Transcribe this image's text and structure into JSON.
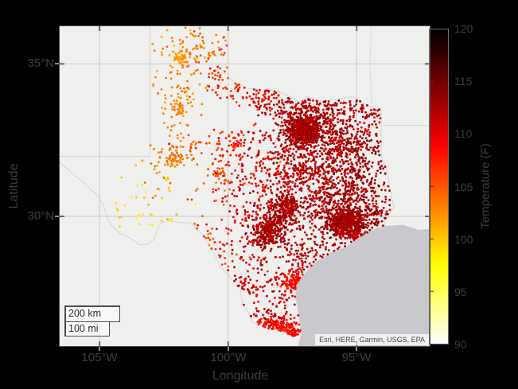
{
  "axes": {
    "xlabel": "Longitude",
    "ylabel": "Latitude",
    "xticks": [
      {
        "label": "105°W",
        "lon": -105
      },
      {
        "label": "100°W",
        "lon": -100
      },
      {
        "label": "95°W",
        "lon": -95
      }
    ],
    "yticks": [
      {
        "label": "35°N",
        "lat": 35
      },
      {
        "label": "30°N",
        "lat": 30
      }
    ]
  },
  "colorbar": {
    "label": "Temperature (F)",
    "min": 90,
    "max": 120,
    "ticks": [
      120,
      115,
      110,
      105,
      100,
      95,
      90
    ],
    "colormap": "hot_reversed_white_to_black"
  },
  "scalebar": {
    "km_label": "200 km",
    "mi_label": "100 mi"
  },
  "attribution": "Esri, HERE, Garmin, USGS, EPA",
  "style_colors": {
    "figure_background": "#000000",
    "label_color": "#3d3d3d",
    "land": "#efefee",
    "water": "#c9c9cd",
    "grid": "#cbcbce",
    "state_border": "#d9d9db",
    "frame": "#4a4a4a"
  },
  "basemap": {
    "texas_outline": [
      [
        -106.55,
        31.81
      ],
      [
        -106.5,
        31.75
      ],
      [
        -106.3,
        31.62
      ],
      [
        -105.99,
        31.39
      ],
      [
        -105.58,
        31.1
      ],
      [
        -105.06,
        30.69
      ],
      [
        -104.85,
        30.39
      ],
      [
        -104.68,
        29.92
      ],
      [
        -104.52,
        29.68
      ],
      [
        -104.16,
        29.4
      ],
      [
        -103.79,
        29.26
      ],
      [
        -103.44,
        29.04
      ],
      [
        -103.1,
        29.06
      ],
      [
        -102.87,
        29.24
      ],
      [
        -102.67,
        29.74
      ],
      [
        -102.34,
        29.87
      ],
      [
        -101.9,
        29.8
      ],
      [
        -101.44,
        29.77
      ],
      [
        -100.96,
        29.35
      ],
      [
        -100.7,
        28.97
      ],
      [
        -100.5,
        28.66
      ],
      [
        -100.29,
        28.28
      ],
      [
        -99.99,
        27.99
      ],
      [
        -99.53,
        27.54
      ],
      [
        -99.44,
        27.02
      ],
      [
        -99.21,
        26.72
      ],
      [
        -99.1,
        26.41
      ],
      [
        -98.68,
        26.24
      ],
      [
        -98.28,
        26.11
      ],
      [
        -97.86,
        26.06
      ],
      [
        -97.47,
        25.88
      ],
      [
        -97.15,
        25.97
      ],
      [
        -97.23,
        26.41
      ],
      [
        -97.29,
        26.9
      ],
      [
        -97.39,
        27.26
      ],
      [
        -97.34,
        27.72
      ],
      [
        -97.04,
        28.04
      ],
      [
        -96.61,
        28.43
      ],
      [
        -96.02,
        28.76
      ],
      [
        -95.36,
        28.99
      ],
      [
        -94.89,
        29.31
      ],
      [
        -94.39,
        29.55
      ],
      [
        -93.89,
        29.68
      ],
      [
        -93.93,
        29.81
      ],
      [
        -93.78,
        30.05
      ],
      [
        -93.55,
        30.28
      ],
      [
        -93.7,
        30.91
      ],
      [
        -93.82,
        31.55
      ],
      [
        -94.04,
        31.99
      ],
      [
        -94.04,
        33.55
      ],
      [
        -94.36,
        33.55
      ],
      [
        -94.49,
        33.64
      ],
      [
        -95.15,
        33.94
      ],
      [
        -95.77,
        33.87
      ],
      [
        -96.38,
        33.8
      ],
      [
        -96.94,
        33.95
      ],
      [
        -97.19,
        33.74
      ],
      [
        -97.46,
        33.9
      ],
      [
        -98.08,
        34.13
      ],
      [
        -98.6,
        34.16
      ],
      [
        -99.19,
        34.21
      ],
      [
        -99.69,
        34.38
      ],
      [
        -100.0,
        34.56
      ],
      [
        -100.0,
        36.5
      ],
      [
        -103.04,
        36.5
      ],
      [
        -103.04,
        32.0
      ],
      [
        -106.62,
        32.0
      ],
      [
        -106.55,
        31.81
      ]
    ],
    "water_coast": [
      [
        -92.1,
        29.57
      ],
      [
        -92.6,
        29.55
      ],
      [
        -93.2,
        29.72
      ],
      [
        -93.89,
        29.68
      ],
      [
        -94.39,
        29.55
      ],
      [
        -94.89,
        29.31
      ],
      [
        -95.36,
        28.99
      ],
      [
        -96.02,
        28.76
      ],
      [
        -96.61,
        28.43
      ],
      [
        -97.04,
        28.04
      ],
      [
        -97.34,
        27.72
      ],
      [
        -97.39,
        27.26
      ],
      [
        -97.29,
        26.9
      ],
      [
        -97.23,
        26.41
      ],
      [
        -97.15,
        25.97
      ],
      [
        -97.3,
        25.5
      ],
      [
        -92.1,
        25.5
      ]
    ],
    "state_lines": [
      [
        [
          -94.43,
          36.25
        ],
        [
          -94.48,
          35.0
        ],
        [
          -94.44,
          34.2
        ],
        [
          -94.42,
          33.57
        ]
      ],
      [
        [
          -94.04,
          33.02
        ],
        [
          -92.1,
          33.02
        ]
      ]
    ]
  },
  "chart_data": {
    "type": "scatter",
    "geographic": true,
    "value_field": "Temperature (F)",
    "value_range": [
      90,
      120
    ],
    "extent": {
      "west": -106.55,
      "east": -92.16,
      "north": 36.19,
      "south": 25.54
    },
    "dot_radius": 1.4,
    "cluster_fields": [
      "lon",
      "lat",
      "sigma_lon",
      "sigma_lat",
      "n_points",
      "temp_mean",
      "temp_sd"
    ],
    "clusters": [
      [
        -103.7,
        30.35,
        0.5,
        0.55,
        16,
        99.0,
        1.0
      ],
      [
        -103.0,
        31.05,
        0.65,
        0.55,
        14,
        100.0,
        1.0
      ],
      [
        -102.55,
        30.0,
        0.55,
        0.45,
        10,
        100.5,
        1.2
      ],
      [
        -101.85,
        35.22,
        0.13,
        0.11,
        40,
        102.0,
        0.6
      ],
      [
        -101.75,
        35.25,
        0.55,
        0.5,
        65,
        102.5,
        1.0
      ],
      [
        -100.8,
        35.5,
        0.5,
        0.45,
        30,
        104.0,
        1.2
      ],
      [
        -100.4,
        34.9,
        0.45,
        0.4,
        28,
        105.5,
        1.2
      ],
      [
        -100.15,
        34.35,
        0.5,
        0.3,
        22,
        106.5,
        1.2
      ],
      [
        -101.88,
        33.58,
        0.14,
        0.11,
        28,
        103.0,
        0.6
      ],
      [
        -101.85,
        33.6,
        0.55,
        0.5,
        40,
        103.0,
        1.0
      ],
      [
        -101.8,
        34.25,
        0.5,
        0.35,
        22,
        103.0,
        1.0
      ],
      [
        -102.15,
        31.95,
        0.25,
        0.12,
        40,
        103.5,
        0.6
      ],
      [
        -102.35,
        31.8,
        0.6,
        0.5,
        35,
        103.0,
        1.0
      ],
      [
        -101.45,
        32.3,
        0.4,
        0.3,
        20,
        104.5,
        1.0
      ],
      [
        -100.45,
        31.45,
        0.2,
        0.15,
        24,
        105.5,
        0.8
      ],
      [
        -100.55,
        31.2,
        0.6,
        0.45,
        25,
        105.5,
        1.2
      ],
      [
        -99.73,
        32.45,
        0.22,
        0.15,
        30,
        107.5,
        0.8
      ],
      [
        -100.35,
        32.45,
        0.4,
        0.3,
        22,
        106.0,
        1.2
      ],
      [
        -99.3,
        31.6,
        0.55,
        0.5,
        40,
        107.5,
        1.2
      ],
      [
        -100.9,
        29.55,
        0.3,
        0.3,
        12,
        105.0,
        1.2
      ],
      [
        -100.35,
        28.7,
        0.3,
        0.35,
        12,
        107.0,
        1.2
      ],
      [
        -99.8,
        29.25,
        0.5,
        0.4,
        25,
        108.0,
        1.2
      ],
      [
        -98.55,
        33.9,
        0.35,
        0.25,
        35,
        110.0,
        1.2
      ],
      [
        -99.35,
        34.05,
        0.5,
        0.3,
        22,
        108.5,
        1.2
      ],
      [
        -97.6,
        33.8,
        0.8,
        0.3,
        45,
        111.0,
        1.2
      ],
      [
        -95.6,
        33.6,
        0.8,
        0.3,
        55,
        112.0,
        1.2
      ],
      [
        -98.3,
        31.9,
        0.9,
        0.85,
        130,
        109.5,
        1.8
      ],
      [
        -98.9,
        30.35,
        0.7,
        0.5,
        85,
        110.5,
        1.6
      ],
      [
        -96.5,
        31.6,
        1.6,
        1.5,
        240,
        112.0,
        1.3
      ],
      [
        -96.9,
        29.6,
        1.0,
        0.8,
        110,
        112.0,
        1.3
      ],
      [
        -97.05,
        32.85,
        0.3,
        0.22,
        620,
        113.0,
        1.0
      ],
      [
        -97.0,
        32.8,
        0.8,
        0.6,
        330,
        112.5,
        1.2
      ],
      [
        -96.7,
        33.45,
        0.6,
        0.35,
        70,
        112.0,
        1.2
      ],
      [
        -97.12,
        31.55,
        0.3,
        0.25,
        65,
        112.0,
        1.0
      ],
      [
        -97.75,
        31.1,
        0.35,
        0.3,
        55,
        112.0,
        1.0
      ],
      [
        -96.35,
        32.0,
        0.6,
        0.5,
        75,
        112.0,
        1.2
      ],
      [
        -97.75,
        30.3,
        0.28,
        0.22,
        190,
        112.5,
        1.0
      ],
      [
        -98.5,
        29.45,
        0.33,
        0.26,
        240,
        112.5,
        1.0
      ],
      [
        -98.05,
        29.9,
        0.32,
        0.27,
        75,
        112.5,
        1.0
      ],
      [
        -95.3,
        32.35,
        0.45,
        0.4,
        140,
        112.5,
        1.1
      ],
      [
        -94.75,
        31.7,
        0.7,
        0.8,
        170,
        112.5,
        1.2
      ],
      [
        -94.35,
        33.35,
        0.4,
        0.3,
        45,
        112.0,
        1.2
      ],
      [
        -94.9,
        30.95,
        0.5,
        0.4,
        55,
        112.5,
        1.1
      ],
      [
        -95.8,
        31.5,
        0.6,
        0.5,
        75,
        112.0,
        1.2
      ],
      [
        -95.4,
        29.8,
        0.36,
        0.26,
        480,
        113.0,
        1.0
      ],
      [
        -95.45,
        29.95,
        0.85,
        0.55,
        190,
        112.5,
        1.2
      ],
      [
        -94.95,
        29.35,
        0.28,
        0.16,
        35,
        111.5,
        1.2
      ],
      [
        -94.15,
        30.1,
        0.3,
        0.25,
        55,
        112.5,
        1.1
      ],
      [
        -96.35,
        30.62,
        0.35,
        0.3,
        55,
        112.0,
        1.1
      ],
      [
        -95.55,
        30.72,
        0.5,
        0.4,
        65,
        112.0,
        1.2
      ],
      [
        -97.0,
        28.82,
        0.4,
        0.35,
        55,
        111.5,
        1.2
      ],
      [
        -98.65,
        28.35,
        0.8,
        0.7,
        85,
        111.0,
        1.4
      ],
      [
        -99.45,
        27.55,
        0.3,
        0.3,
        28,
        111.0,
        1.2
      ],
      [
        -97.95,
        27.35,
        0.45,
        0.4,
        35,
        111.0,
        1.2
      ],
      [
        -97.25,
        27.95,
        0.45,
        0.35,
        35,
        110.5,
        1.2
      ],
      [
        -97.38,
        27.78,
        0.28,
        0.2,
        75,
        108.5,
        0.8
      ],
      [
        -98.35,
        26.45,
        0.5,
        0.25,
        55,
        111.5,
        1.2
      ],
      [
        -98.0,
        26.25,
        0.5,
        0.16,
        115,
        108.5,
        0.8
      ],
      [
        -97.5,
        25.98,
        0.22,
        0.13,
        45,
        108.5,
        0.8
      ]
    ]
  }
}
